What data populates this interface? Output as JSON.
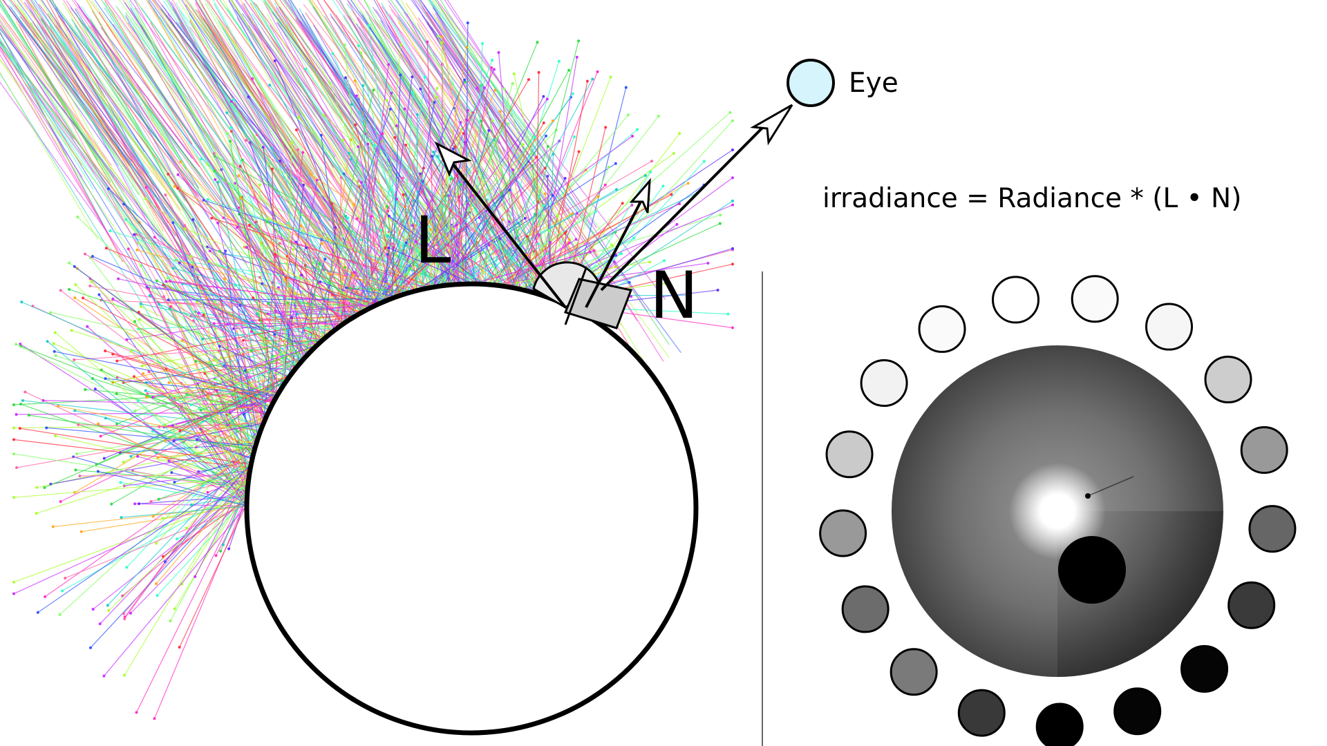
{
  "labels": {
    "light": "L",
    "normal": "N",
    "eye": "Eye",
    "formula": "irradiance = Radiance * (L • N)"
  },
  "colors": {
    "eye_fill": "#d6f4fc",
    "stroke": "#000000",
    "angle_fill": "#e8e8e8",
    "square_fill": "#cccccc",
    "divider": "#666666",
    "ray_palette": [
      "#ff3344",
      "#33dd44",
      "#3355ff",
      "#cc33ff",
      "#22cccc",
      "#ffaa22",
      "#88ff66",
      "#ff66aa",
      "#6633ff",
      "#aaff33",
      "#33ffcc",
      "#ff33cc"
    ]
  },
  "probe": {
    "swatch_grays": [
      "#fafafa",
      "#f6f6f6",
      "#cdcdcd",
      "#999999",
      "#666666",
      "#3a3a3a",
      "#050505",
      "#050505",
      "#000000",
      "#393939",
      "#7a7a7a",
      "#6c6c6c",
      "#999999",
      "#cacaca",
      "#f2f2f2",
      "#fafafa",
      "#ffffff"
    ]
  }
}
